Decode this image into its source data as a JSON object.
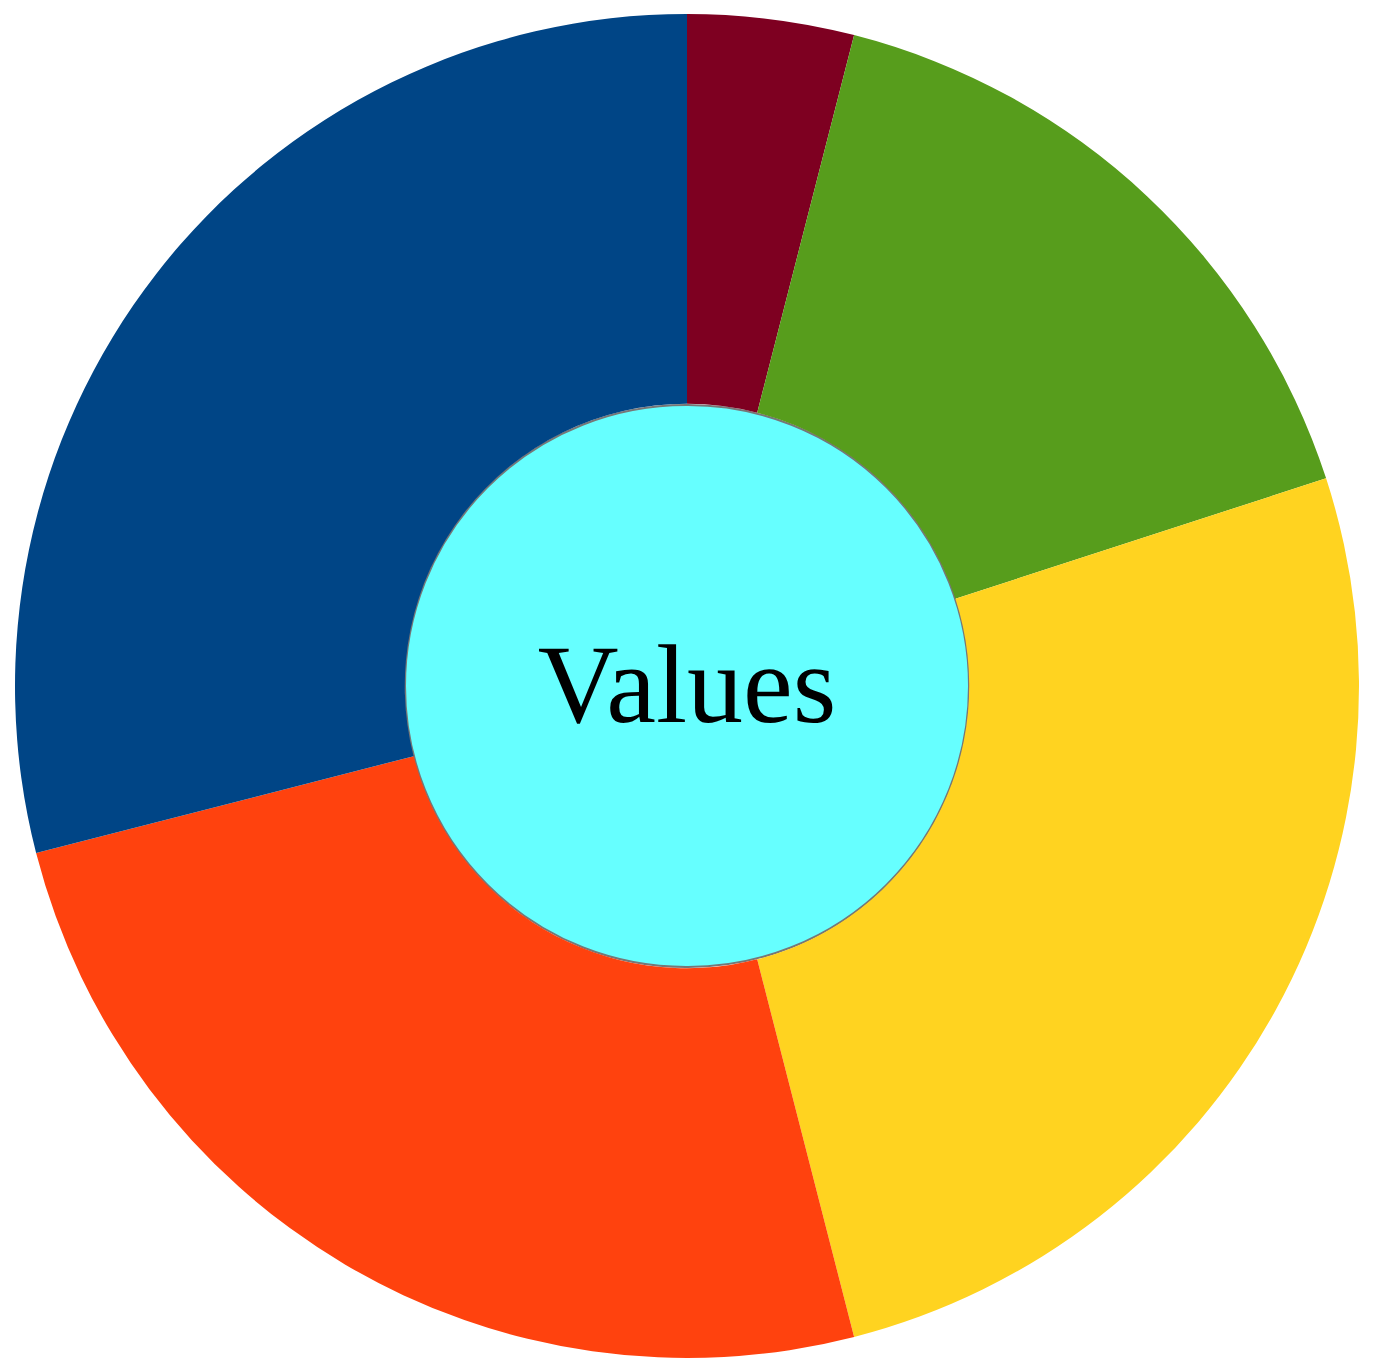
{
  "chart_data": {
    "type": "donut",
    "title": "Values",
    "categories": [
      null,
      null,
      null,
      null,
      null
    ],
    "values": [
      4,
      16,
      26,
      25,
      29
    ],
    "colors": [
      "#7e0021",
      "#579d1c",
      "#ffd320",
      "#ff420e",
      "#004586"
    ]
  }
}
